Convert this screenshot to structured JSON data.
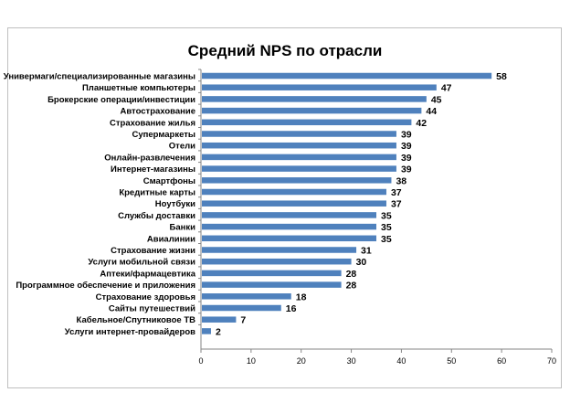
{
  "chart_data": {
    "type": "bar",
    "orientation": "horizontal",
    "title": "Средний NPS по отрасли",
    "categories": [
      "Универмаги/специализированные магазины",
      "Планшетные компьютеры",
      "Брокерские операции/инвестиции",
      "Автострахование",
      "Страхование жилья",
      "Супермаркеты",
      "Отели",
      "Онлайн-развлечения",
      "Интернет-магазины",
      "Смартфоны",
      "Кредитные карты",
      "Ноутбуки",
      "Службы доставки",
      "Банки",
      "Авиалинии",
      "Страхование жизни",
      "Услуги мобильной связи",
      "Аптеки/фармацевтика",
      "Программное обеспечение и приложения",
      "Страхование здоровья",
      "Сайты путешествий",
      "Кабельное/Спутниковое ТВ",
      "Услуги интернет-провайдеров"
    ],
    "values": [
      58,
      47,
      45,
      44,
      42,
      39,
      39,
      39,
      39,
      38,
      37,
      37,
      35,
      35,
      35,
      31,
      30,
      28,
      28,
      18,
      16,
      7,
      2
    ],
    "xlim": [
      0,
      70
    ],
    "xticks": [
      0,
      10,
      20,
      30,
      40,
      50,
      60,
      70
    ],
    "xlabel": "",
    "ylabel": "",
    "grid": false,
    "data_labels": true,
    "bar_color": "#4f81bd"
  }
}
